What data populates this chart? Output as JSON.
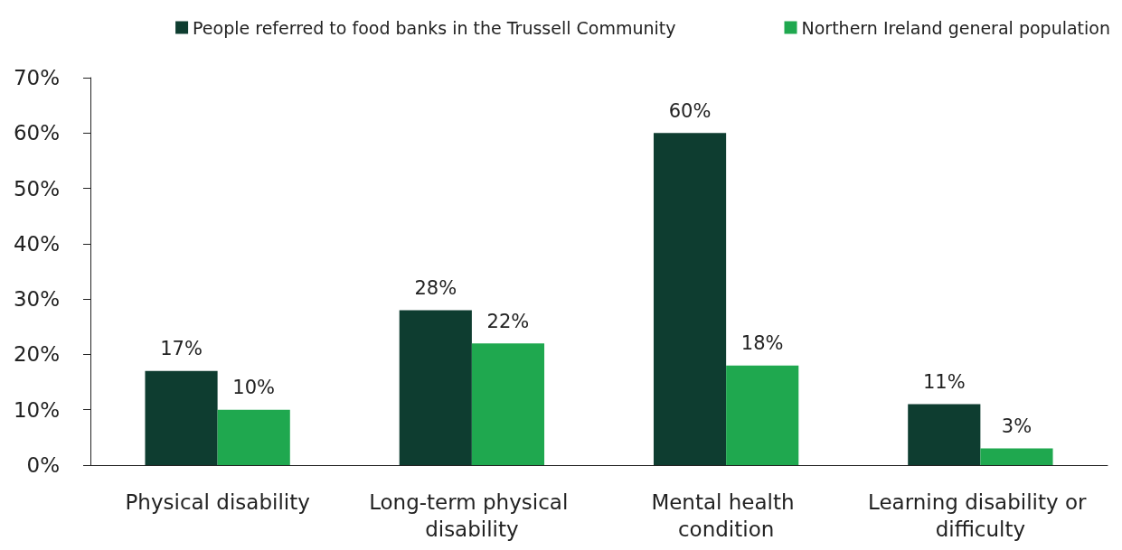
{
  "chart_data": {
    "type": "bar",
    "categories": [
      "Physical disability",
      "Long-term physical disability",
      "Mental health condition",
      "Learning disability or difficulty"
    ],
    "series": [
      {
        "name": "People referred to food banks in the Trussell Community",
        "color": "#0e3d30",
        "values": [
          17,
          28,
          60,
          11
        ],
        "value_labels": [
          "17%",
          "28%",
          "60%",
          "11%"
        ]
      },
      {
        "name": "Northern Ireland general population",
        "color": "#1fa84f",
        "values": [
          10,
          22,
          18,
          3
        ],
        "value_labels": [
          "10%",
          "22%",
          "18%",
          "3%"
        ]
      }
    ],
    "ylim": [
      0,
      70
    ],
    "yticks": [
      {
        "value": 0,
        "label": "0%"
      },
      {
        "value": 10,
        "label": "10%"
      },
      {
        "value": 20,
        "label": "20%"
      },
      {
        "value": 30,
        "label": "30%"
      },
      {
        "value": 40,
        "label": "40%"
      },
      {
        "value": 50,
        "label": "50%"
      },
      {
        "value": 60,
        "label": "60%"
      },
      {
        "value": 70,
        "label": "70%"
      }
    ],
    "grid": false,
    "legend": "top"
  }
}
